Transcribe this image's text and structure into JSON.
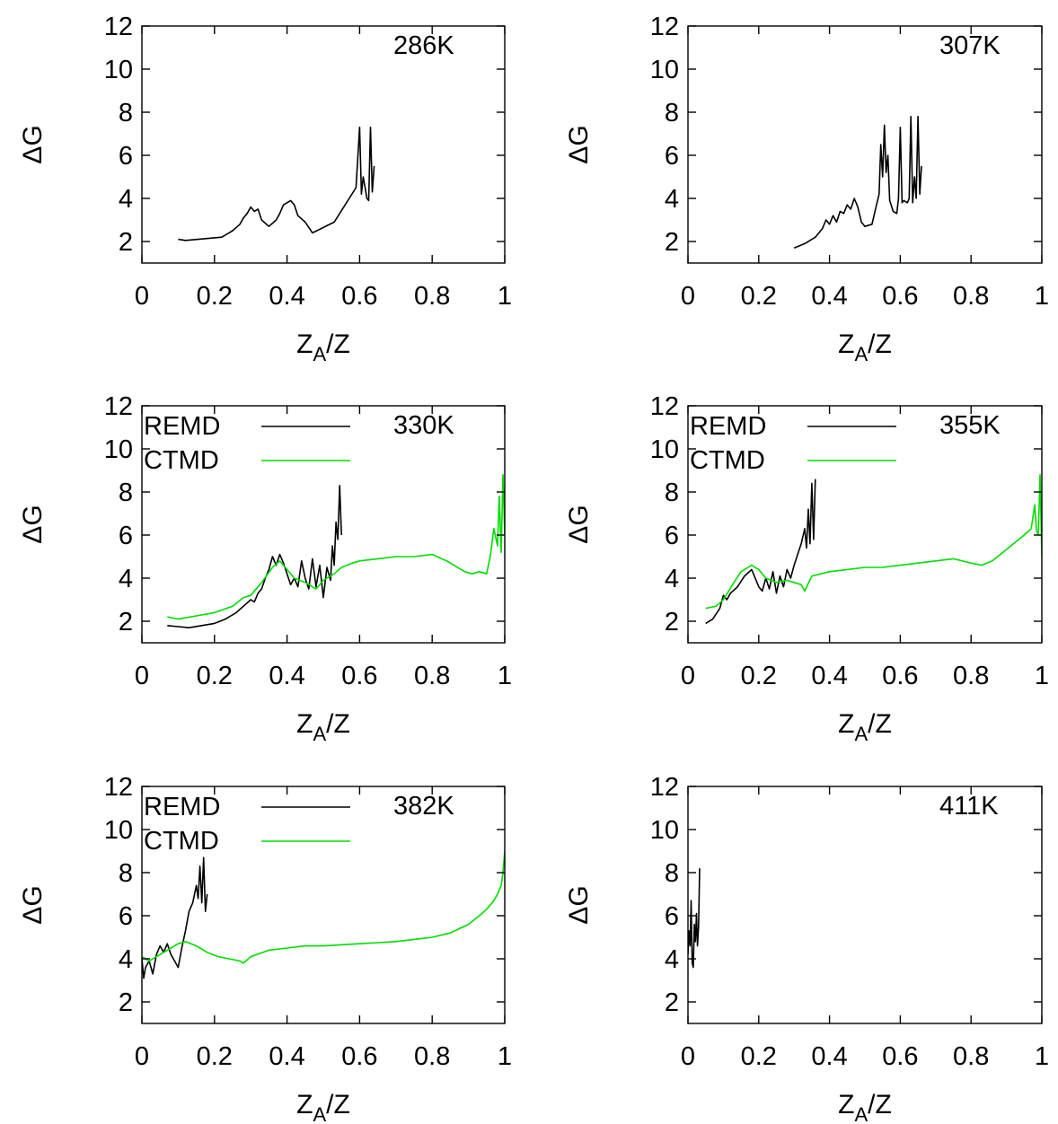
{
  "chart_data": [
    {
      "type": "line",
      "panel_label": "286K",
      "xlabel_main": "Z",
      "xlabel_sub": "A",
      "xlabel_tail": "/Z",
      "ylabel": "ΔG",
      "xlim": [
        0,
        1
      ],
      "ylim": [
        1,
        12
      ],
      "xticks": [
        "0",
        "0.2",
        "0.4",
        "0.6",
        "0.8",
        "1"
      ],
      "yticks": [
        "2",
        "4",
        "6",
        "8",
        "10",
        "12"
      ],
      "grid": false,
      "legend": [],
      "series": [
        {
          "color": "#000000",
          "x": [
            0.1,
            0.12,
            0.22,
            0.23,
            0.25,
            0.27,
            0.28,
            0.29,
            0.3,
            0.31,
            0.32,
            0.33,
            0.35,
            0.37,
            0.38,
            0.39,
            0.4,
            0.41,
            0.42,
            0.43,
            0.45,
            0.47,
            0.53,
            0.59,
            0.6,
            0.605,
            0.61,
            0.615,
            0.62,
            0.625,
            0.63,
            0.635,
            0.64
          ],
          "y": [
            2.1,
            2.05,
            2.2,
            2.3,
            2.5,
            2.8,
            3.1,
            3.3,
            3.6,
            3.4,
            3.5,
            3.0,
            2.7,
            3.0,
            3.3,
            3.7,
            3.8,
            3.9,
            3.7,
            3.2,
            2.9,
            2.4,
            2.9,
            4.5,
            7.3,
            4.2,
            5.0,
            4.5,
            4.0,
            3.9,
            7.3,
            4.3,
            5.5
          ]
        }
      ]
    },
    {
      "type": "line",
      "panel_label": "307K",
      "xlabel_main": "Z",
      "xlabel_sub": "A",
      "xlabel_tail": "/Z",
      "ylabel": "ΔG",
      "xlim": [
        0,
        1
      ],
      "ylim": [
        1,
        12
      ],
      "xticks": [
        "0",
        "0.2",
        "0.4",
        "0.6",
        "0.8",
        "1"
      ],
      "yticks": [
        "2",
        "4",
        "6",
        "8",
        "10",
        "12"
      ],
      "grid": false,
      "legend": [],
      "series": [
        {
          "color": "#000000",
          "x": [
            0.3,
            0.33,
            0.36,
            0.38,
            0.39,
            0.4,
            0.41,
            0.42,
            0.43,
            0.44,
            0.45,
            0.46,
            0.47,
            0.48,
            0.49,
            0.5,
            0.52,
            0.53,
            0.54,
            0.545,
            0.55,
            0.555,
            0.56,
            0.565,
            0.57,
            0.58,
            0.59,
            0.595,
            0.6,
            0.605,
            0.61,
            0.62,
            0.625,
            0.63,
            0.635,
            0.64,
            0.645,
            0.65,
            0.655,
            0.66
          ],
          "y": [
            1.7,
            1.9,
            2.2,
            2.6,
            3.0,
            2.8,
            3.2,
            2.9,
            3.4,
            3.3,
            3.7,
            3.5,
            4.0,
            3.6,
            2.9,
            2.7,
            2.8,
            3.5,
            4.2,
            6.5,
            5.0,
            7.4,
            5.2,
            6.0,
            3.9,
            3.4,
            3.3,
            4.0,
            7.3,
            3.8,
            3.9,
            3.8,
            4.0,
            7.8,
            3.8,
            5.0,
            4.0,
            7.8,
            4.2,
            5.5
          ]
        }
      ]
    },
    {
      "type": "line",
      "panel_label": "330K",
      "xlabel_main": "Z",
      "xlabel_sub": "A",
      "xlabel_tail": "/Z",
      "ylabel": "ΔG",
      "xlim": [
        0,
        1
      ],
      "ylim": [
        1,
        12
      ],
      "xticks": [
        "0",
        "0.2",
        "0.4",
        "0.6",
        "0.8",
        "1"
      ],
      "yticks": [
        "2",
        "4",
        "6",
        "8",
        "10",
        "12"
      ],
      "grid": false,
      "legend": [
        "REMD",
        "CTMD"
      ],
      "series": [
        {
          "name": "REMD",
          "color": "#000000",
          "x": [
            0.07,
            0.1,
            0.13,
            0.2,
            0.23,
            0.26,
            0.28,
            0.3,
            0.31,
            0.32,
            0.33,
            0.34,
            0.35,
            0.36,
            0.37,
            0.38,
            0.39,
            0.4,
            0.41,
            0.42,
            0.43,
            0.44,
            0.45,
            0.46,
            0.47,
            0.48,
            0.49,
            0.5,
            0.51,
            0.52,
            0.525,
            0.53,
            0.535,
            0.54,
            0.545,
            0.55
          ],
          "y": [
            1.8,
            1.75,
            1.7,
            1.9,
            2.1,
            2.4,
            2.7,
            3.0,
            2.9,
            3.3,
            3.5,
            4.0,
            4.4,
            5.0,
            4.6,
            5.1,
            4.7,
            4.2,
            3.7,
            4.0,
            3.6,
            4.8,
            4.0,
            3.5,
            4.9,
            3.6,
            4.6,
            3.1,
            4.5,
            3.9,
            5.5,
            4.6,
            6.6,
            5.8,
            8.3,
            6.0
          ]
        },
        {
          "name": "CTMD",
          "color": "#00dd00",
          "x": [
            0.07,
            0.1,
            0.15,
            0.2,
            0.25,
            0.28,
            0.3,
            0.33,
            0.36,
            0.38,
            0.4,
            0.42,
            0.45,
            0.48,
            0.5,
            0.53,
            0.55,
            0.58,
            0.6,
            0.65,
            0.7,
            0.75,
            0.8,
            0.84,
            0.87,
            0.89,
            0.91,
            0.93,
            0.95,
            0.96,
            0.97,
            0.98,
            0.985,
            0.99,
            0.995,
            1.0
          ],
          "y": [
            2.2,
            2.1,
            2.25,
            2.4,
            2.7,
            3.1,
            3.2,
            3.8,
            4.5,
            4.8,
            4.4,
            4.0,
            3.8,
            3.5,
            3.9,
            4.2,
            4.5,
            4.7,
            4.8,
            4.9,
            5.0,
            5.0,
            5.1,
            4.8,
            4.5,
            4.3,
            4.2,
            4.3,
            4.2,
            5.0,
            6.3,
            5.5,
            7.8,
            5.2,
            8.8,
            6.0
          ]
        }
      ]
    },
    {
      "type": "line",
      "panel_label": "355K",
      "xlabel_main": "Z",
      "xlabel_sub": "A",
      "xlabel_tail": "/Z",
      "ylabel": "ΔG",
      "xlim": [
        0,
        1
      ],
      "ylim": [
        1,
        12
      ],
      "xticks": [
        "0",
        "0.2",
        "0.4",
        "0.6",
        "0.8",
        "1"
      ],
      "yticks": [
        "2",
        "4",
        "6",
        "8",
        "10",
        "12"
      ],
      "grid": false,
      "legend": [
        "REMD",
        "CTMD"
      ],
      "series": [
        {
          "name": "REMD",
          "color": "#000000",
          "x": [
            0.05,
            0.07,
            0.09,
            0.1,
            0.11,
            0.12,
            0.14,
            0.16,
            0.18,
            0.19,
            0.2,
            0.21,
            0.22,
            0.23,
            0.24,
            0.25,
            0.26,
            0.27,
            0.28,
            0.29,
            0.3,
            0.31,
            0.32,
            0.33,
            0.335,
            0.34,
            0.345,
            0.35,
            0.355,
            0.36
          ],
          "y": [
            1.9,
            2.1,
            2.6,
            3.2,
            3.0,
            3.3,
            3.6,
            4.1,
            4.4,
            4.0,
            3.6,
            3.4,
            4.0,
            3.5,
            4.3,
            3.3,
            4.1,
            3.6,
            4.4,
            4.0,
            4.6,
            5.1,
            5.6,
            6.3,
            5.4,
            7.2,
            5.6,
            8.4,
            5.8,
            8.6
          ]
        },
        {
          "name": "CTMD",
          "color": "#00dd00",
          "x": [
            0.05,
            0.08,
            0.1,
            0.13,
            0.15,
            0.17,
            0.18,
            0.2,
            0.22,
            0.25,
            0.28,
            0.3,
            0.32,
            0.33,
            0.35,
            0.4,
            0.45,
            0.5,
            0.55,
            0.6,
            0.65,
            0.7,
            0.75,
            0.8,
            0.83,
            0.86,
            0.89,
            0.92,
            0.95,
            0.97,
            0.98,
            0.985,
            0.99,
            0.995,
            1.0
          ],
          "y": [
            2.6,
            2.7,
            3.0,
            3.8,
            4.3,
            4.5,
            4.6,
            4.4,
            4.0,
            3.8,
            3.9,
            3.8,
            3.7,
            3.4,
            4.1,
            4.3,
            4.4,
            4.5,
            4.5,
            4.6,
            4.7,
            4.8,
            4.9,
            4.7,
            4.6,
            4.8,
            5.2,
            5.6,
            6.0,
            6.3,
            7.4,
            6.2,
            6.0,
            8.8,
            5.0
          ]
        }
      ]
    },
    {
      "type": "line",
      "panel_label": "382K",
      "xlabel_main": "Z",
      "xlabel_sub": "A",
      "xlabel_tail": "/Z",
      "ylabel": "ΔG",
      "xlim": [
        0,
        1
      ],
      "ylim": [
        1,
        12
      ],
      "xticks": [
        "0",
        "0.2",
        "0.4",
        "0.6",
        "0.8",
        "1"
      ],
      "yticks": [
        "2",
        "4",
        "6",
        "8",
        "10",
        "12"
      ],
      "grid": false,
      "legend": [
        "REMD",
        "CTMD"
      ],
      "series": [
        {
          "name": "REMD",
          "color": "#000000",
          "x": [
            0.0,
            0.005,
            0.01,
            0.02,
            0.03,
            0.04,
            0.05,
            0.06,
            0.07,
            0.08,
            0.09,
            0.1,
            0.11,
            0.12,
            0.13,
            0.14,
            0.15,
            0.155,
            0.16,
            0.165,
            0.17,
            0.175,
            0.18
          ],
          "y": [
            4.0,
            3.1,
            3.6,
            3.9,
            3.3,
            4.2,
            4.6,
            4.3,
            4.7,
            4.2,
            3.9,
            3.6,
            4.5,
            5.3,
            6.2,
            6.6,
            7.4,
            6.8,
            8.3,
            6.6,
            8.7,
            6.2,
            7.0
          ]
        },
        {
          "name": "CTMD",
          "color": "#00dd00",
          "x": [
            0.0,
            0.02,
            0.05,
            0.08,
            0.1,
            0.12,
            0.15,
            0.18,
            0.21,
            0.24,
            0.27,
            0.28,
            0.3,
            0.35,
            0.4,
            0.45,
            0.5,
            0.55,
            0.6,
            0.65,
            0.7,
            0.75,
            0.8,
            0.85,
            0.9,
            0.93,
            0.95,
            0.97,
            0.98,
            0.99,
            0.995,
            1.0
          ],
          "y": [
            4.1,
            3.9,
            4.2,
            4.5,
            4.7,
            4.8,
            4.6,
            4.3,
            4.1,
            4.0,
            3.9,
            3.8,
            4.1,
            4.4,
            4.5,
            4.6,
            4.6,
            4.65,
            4.7,
            4.75,
            4.8,
            4.9,
            5.0,
            5.2,
            5.6,
            6.0,
            6.3,
            6.7,
            7.0,
            7.4,
            8.0,
            9.0
          ]
        }
      ]
    },
    {
      "type": "line",
      "panel_label": "411K",
      "xlabel_main": "Z",
      "xlabel_sub": "A",
      "xlabel_tail": "/Z",
      "ylabel": "ΔG",
      "xlim": [
        0,
        1
      ],
      "ylim": [
        1,
        12
      ],
      "xticks": [
        "0",
        "0.2",
        "0.4",
        "0.6",
        "0.8",
        "1"
      ],
      "yticks": [
        "2",
        "4",
        "6",
        "8",
        "10",
        "12"
      ],
      "grid": false,
      "legend": [],
      "series": [
        {
          "color": "#000000",
          "x": [
            0.0,
            0.003,
            0.006,
            0.009,
            0.012,
            0.015,
            0.018,
            0.021,
            0.024,
            0.027,
            0.03,
            0.033
          ],
          "y": [
            4.2,
            5.3,
            4.6,
            6.7,
            3.8,
            3.6,
            5.6,
            4.8,
            6.1,
            4.6,
            5.5,
            8.2
          ]
        }
      ]
    }
  ]
}
